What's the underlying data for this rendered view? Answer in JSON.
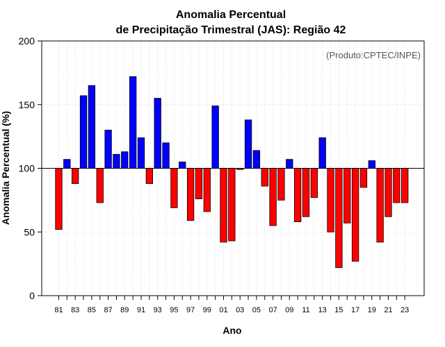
{
  "chart_data": {
    "type": "bar",
    "title_line1": "Anomalia Percentual",
    "title_line2": "de Precipitação Trimestral (JAS): Região 42",
    "xlabel": "Ano",
    "ylabel": "Anomalia Percentual (%)",
    "credit": "(Produto:CPTEC/INPE)",
    "baseline": 100,
    "ylim": [
      0,
      200
    ],
    "yticks": [
      0,
      50,
      100,
      150,
      200
    ],
    "colors": {
      "above": "#0000ff",
      "below": "#ff0000"
    },
    "categories": [
      "81",
      "82",
      "83",
      "84",
      "85",
      "86",
      "87",
      "88",
      "89",
      "90",
      "91",
      "92",
      "93",
      "94",
      "95",
      "96",
      "97",
      "98",
      "99",
      "00",
      "01",
      "02",
      "03",
      "04",
      "05",
      "06",
      "07",
      "08",
      "09",
      "10",
      "11",
      "12",
      "13",
      "14",
      "15",
      "16",
      "17",
      "18",
      "19",
      "20",
      "21",
      "22",
      "23"
    ],
    "xtick_labels": [
      "81",
      "83",
      "85",
      "87",
      "89",
      "91",
      "93",
      "95",
      "97",
      "99",
      "01",
      "03",
      "05",
      "07",
      "09",
      "11",
      "13",
      "15",
      "17",
      "19",
      "21",
      "23"
    ],
    "values": [
      52,
      107,
      88,
      157,
      165,
      73,
      130,
      111,
      113,
      172,
      124,
      88,
      155,
      120,
      69,
      105,
      59,
      76,
      66,
      149,
      42,
      43,
      99,
      138,
      114,
      86,
      55,
      75,
      107,
      58,
      62,
      77,
      124,
      50,
      22,
      57,
      27,
      85,
      106,
      42,
      62,
      73,
      73
    ]
  }
}
